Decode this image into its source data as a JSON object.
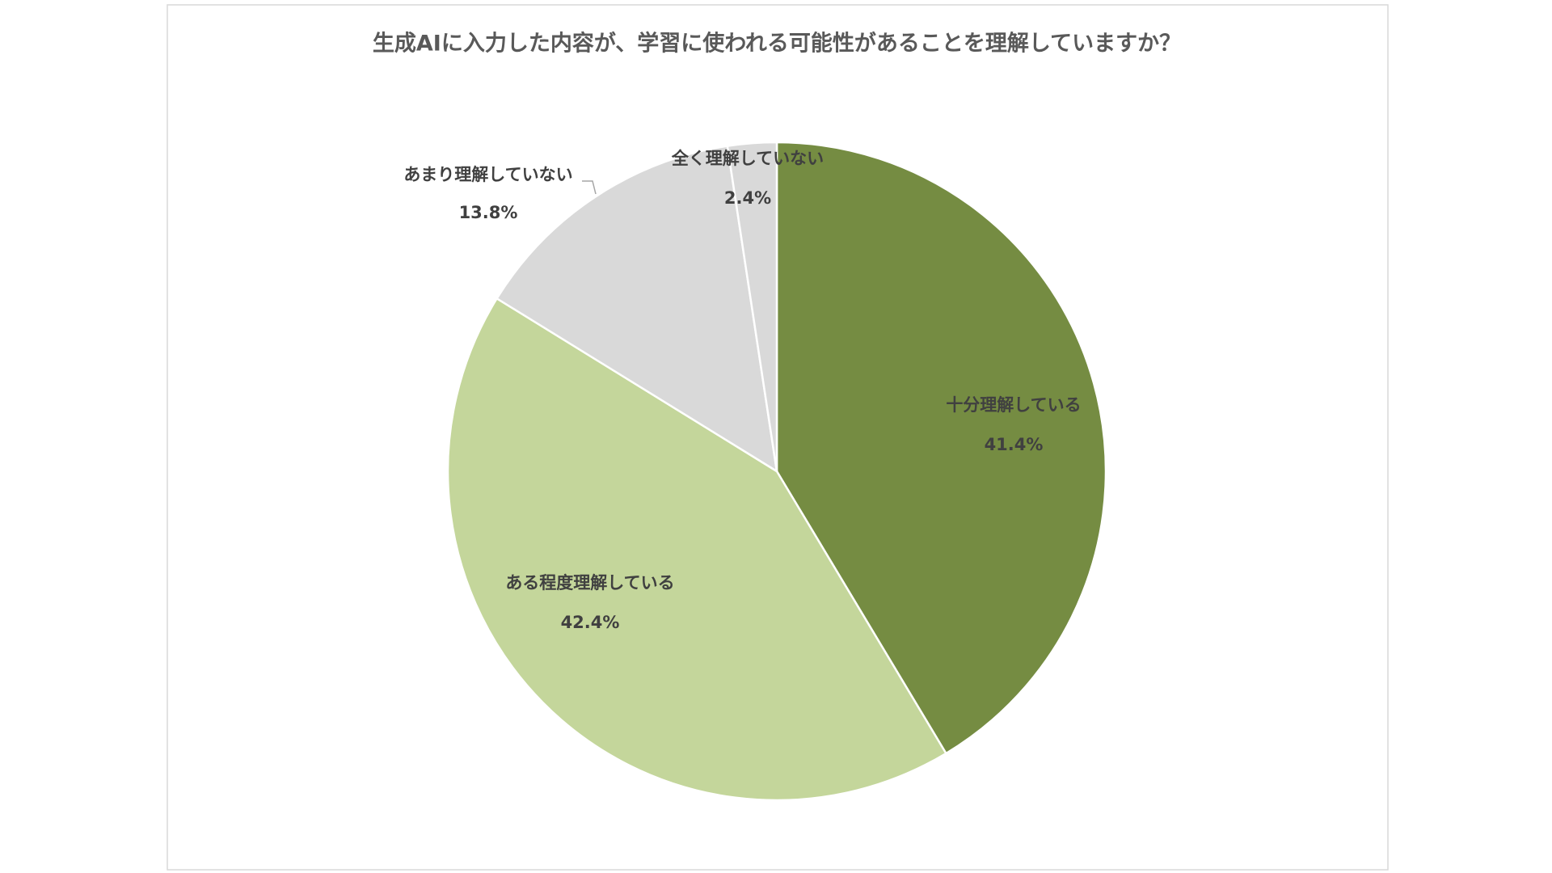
{
  "chart_data": {
    "type": "pie",
    "title": "生成AIに入力した内容が、学習に使われる可能性があることを理解していますか？",
    "categories": [
      "十分理解している",
      "ある程度理解している",
      "あまり理解していない",
      "全く理解していない"
    ],
    "values": [
      41.4,
      42.4,
      13.8,
      2.4
    ],
    "value_labels": [
      "41.4%",
      "42.4%",
      "13.8%",
      "2.4%"
    ],
    "colors": [
      "#758c42",
      "#c4d69b",
      "#d9d9d9",
      "#d9d9d9"
    ]
  }
}
